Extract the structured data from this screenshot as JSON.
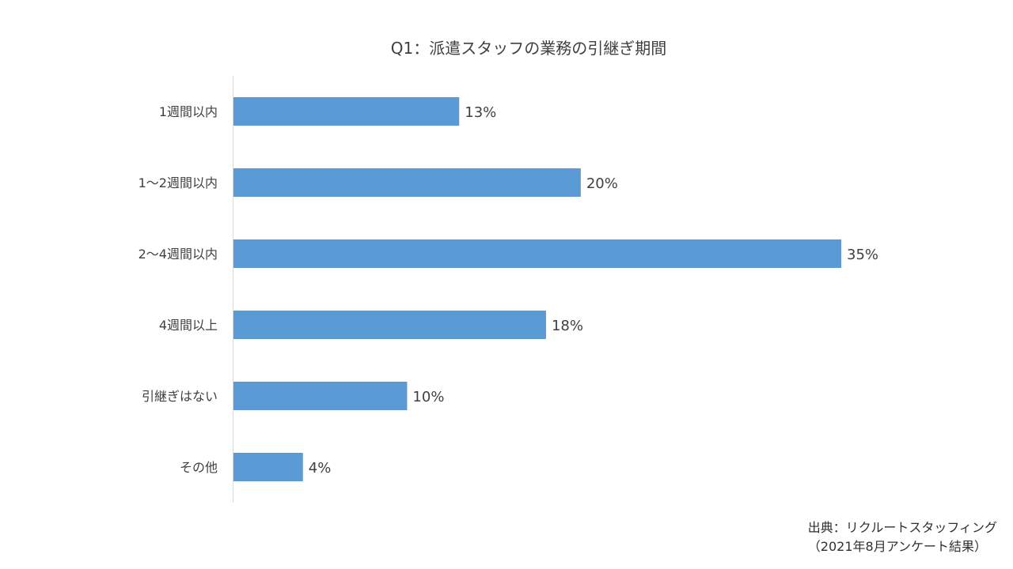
{
  "chart_data": {
    "type": "bar",
    "orientation": "horizontal",
    "title": "Q1：派遣スタッフの業務の引継ぎ期間",
    "categories": [
      "1週間以内",
      "1～2週間以内",
      "2～4週間以内",
      "4週間以上",
      "引継ぎはない",
      "その他"
    ],
    "values": [
      13,
      20,
      35,
      18,
      10,
      4
    ],
    "value_labels": [
      "13%",
      "20%",
      "35%",
      "18%",
      "10%",
      "4%"
    ],
    "unit": "%",
    "xlim": [
      0,
      35
    ],
    "grid": false,
    "legend": "none",
    "bar_color": "#5B9BD5"
  },
  "source": {
    "line1": "出典：リクルートスタッフィング",
    "line2": "（2021年8月アンケート結果）"
  }
}
